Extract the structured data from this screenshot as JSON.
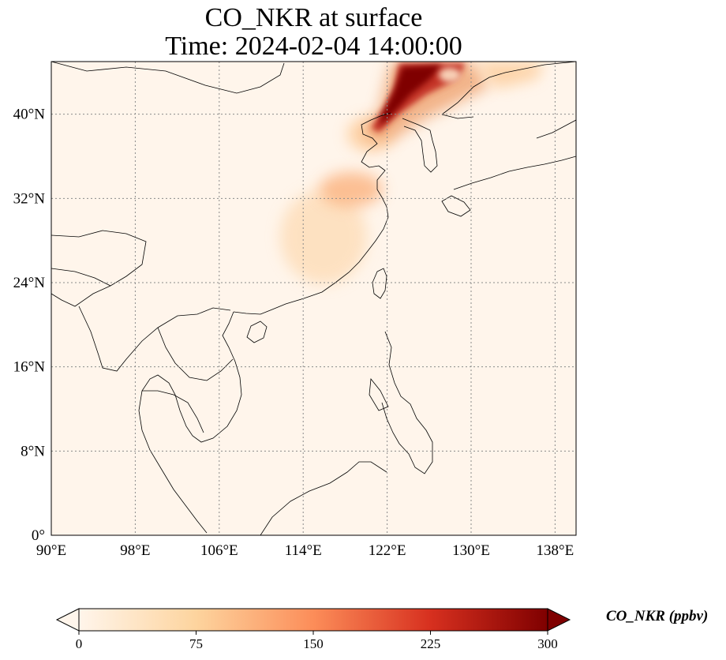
{
  "title": {
    "line1": "CO_NKR at surface",
    "line2": "Time: 2024-02-04 14:00:00"
  },
  "map": {
    "projection": "PlateCarree",
    "lon_range": [
      90,
      140
    ],
    "lat_range": [
      0,
      45
    ],
    "lon_ticks": [
      {
        "value": 90,
        "label": "90°E"
      },
      {
        "value": 98,
        "label": "98°E"
      },
      {
        "value": 106,
        "label": "106°E"
      },
      {
        "value": 114,
        "label": "114°E"
      },
      {
        "value": 122,
        "label": "122°E"
      },
      {
        "value": 130,
        "label": "130°E"
      },
      {
        "value": 138,
        "label": "138°E"
      }
    ],
    "lat_ticks": [
      {
        "value": 0,
        "label": "0°"
      },
      {
        "value": 8,
        "label": "8°N"
      },
      {
        "value": 16,
        "label": "16°N"
      },
      {
        "value": 24,
        "label": "24°N"
      },
      {
        "value": 32,
        "label": "32°N"
      },
      {
        "value": 40,
        "label": "40°N"
      }
    ],
    "gridlines": "dotted",
    "background_color": "#fff5eb",
    "coastline_color": "#000000"
  },
  "colorbar": {
    "label": "CO_NKR (ppbv)",
    "colormap": "OrRd",
    "colors": [
      "#fff5eb",
      "#fdd49e",
      "#fc8d59",
      "#d7301f",
      "#7f0000"
    ],
    "range": [
      0,
      300
    ],
    "ticks": [
      {
        "value": 0,
        "label": "0"
      },
      {
        "value": 75,
        "label": "75"
      },
      {
        "value": 150,
        "label": "150"
      },
      {
        "value": 225,
        "label": "225"
      },
      {
        "value": 300,
        "label": "300"
      }
    ],
    "extend": "both"
  },
  "chart_data": {
    "type": "heatmap",
    "variable": "CO_NKR",
    "units": "ppbv",
    "plumes": [
      {
        "lon": 125.5,
        "lat": 42.5,
        "value": 300
      },
      {
        "lon": 127.0,
        "lat": 43.5,
        "value": 290
      },
      {
        "lon": 124.5,
        "lat": 41.0,
        "value": 280
      },
      {
        "lon": 123.0,
        "lat": 40.0,
        "value": 250
      },
      {
        "lon": 128.5,
        "lat": 44.2,
        "value": 220
      },
      {
        "lon": 131.0,
        "lat": 44.0,
        "value": 120
      },
      {
        "lon": 120.0,
        "lat": 37.5,
        "value": 110
      },
      {
        "lon": 118.5,
        "lat": 32.5,
        "value": 110
      },
      {
        "lon": 116.5,
        "lat": 30.0,
        "value": 70
      },
      {
        "lon": 114.0,
        "lat": 27.5,
        "value": 50
      },
      {
        "lon": 112.0,
        "lat": 24.0,
        "value": 30
      }
    ]
  }
}
